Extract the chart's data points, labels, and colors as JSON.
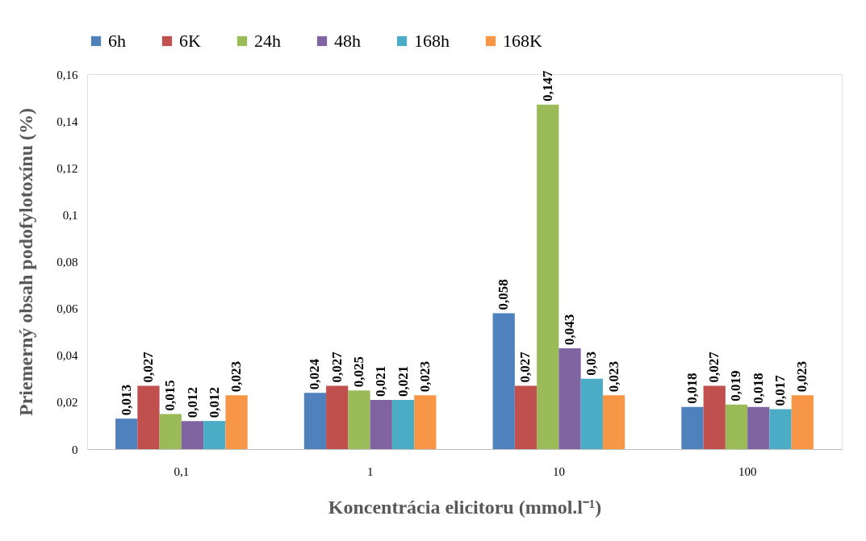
{
  "chart_data": {
    "type": "bar",
    "xlabel": "Koncentrácia elicitoru (mmol.l⁻¹)",
    "ylabel": "Priemerný obsah podofylotoxínu (%)",
    "categories": [
      "0,1",
      "1",
      "10",
      "100"
    ],
    "series": [
      {
        "name": "6h",
        "color": "#4f81bd",
        "values": [
          0.013,
          0.024,
          0.058,
          0.018
        ],
        "value_labels": [
          "0,013",
          "0,024",
          "0,058",
          "0,018"
        ]
      },
      {
        "name": "6K",
        "color": "#c0504d",
        "values": [
          0.027,
          0.027,
          0.027,
          0.027
        ],
        "value_labels": [
          "0,027",
          "0,027",
          "0,027",
          "0,027"
        ]
      },
      {
        "name": "24h",
        "color": "#9bbb59",
        "values": [
          0.015,
          0.025,
          0.147,
          0.019
        ],
        "value_labels": [
          "0,015",
          "0,025",
          "0,147",
          "0,019"
        ]
      },
      {
        "name": "48h",
        "color": "#8064a2",
        "values": [
          0.012,
          0.021,
          0.043,
          0.018
        ],
        "value_labels": [
          "0,012",
          "0,021",
          "0,043",
          "0,018"
        ]
      },
      {
        "name": "168h",
        "color": "#4bacc6",
        "values": [
          0.012,
          0.021,
          0.03,
          0.017
        ],
        "value_labels": [
          "0,012",
          "0,021",
          "0,03",
          "0,017"
        ]
      },
      {
        "name": "168K",
        "color": "#f79646",
        "values": [
          0.023,
          0.023,
          0.023,
          0.023
        ],
        "value_labels": [
          "0,023",
          "0,023",
          "0,023",
          "0,023"
        ]
      }
    ],
    "ylim": [
      0,
      0.16
    ],
    "yticks": [
      0,
      {
        "value": 0.02,
        "label": "0,02"
      },
      {
        "value": 0.04,
        "label": "0,04"
      },
      {
        "value": 0.06,
        "label": "0,06"
      },
      {
        "value": 0.08,
        "label": "0,08"
      },
      {
        "value": 0.1,
        "label": "0,1"
      },
      {
        "value": 0.12,
        "label": "0,12"
      },
      {
        "value": 0.14,
        "label": "0,14"
      },
      {
        "value": 0.16,
        "label": "0,16"
      }
    ],
    "grid": false,
    "legend": "top"
  }
}
